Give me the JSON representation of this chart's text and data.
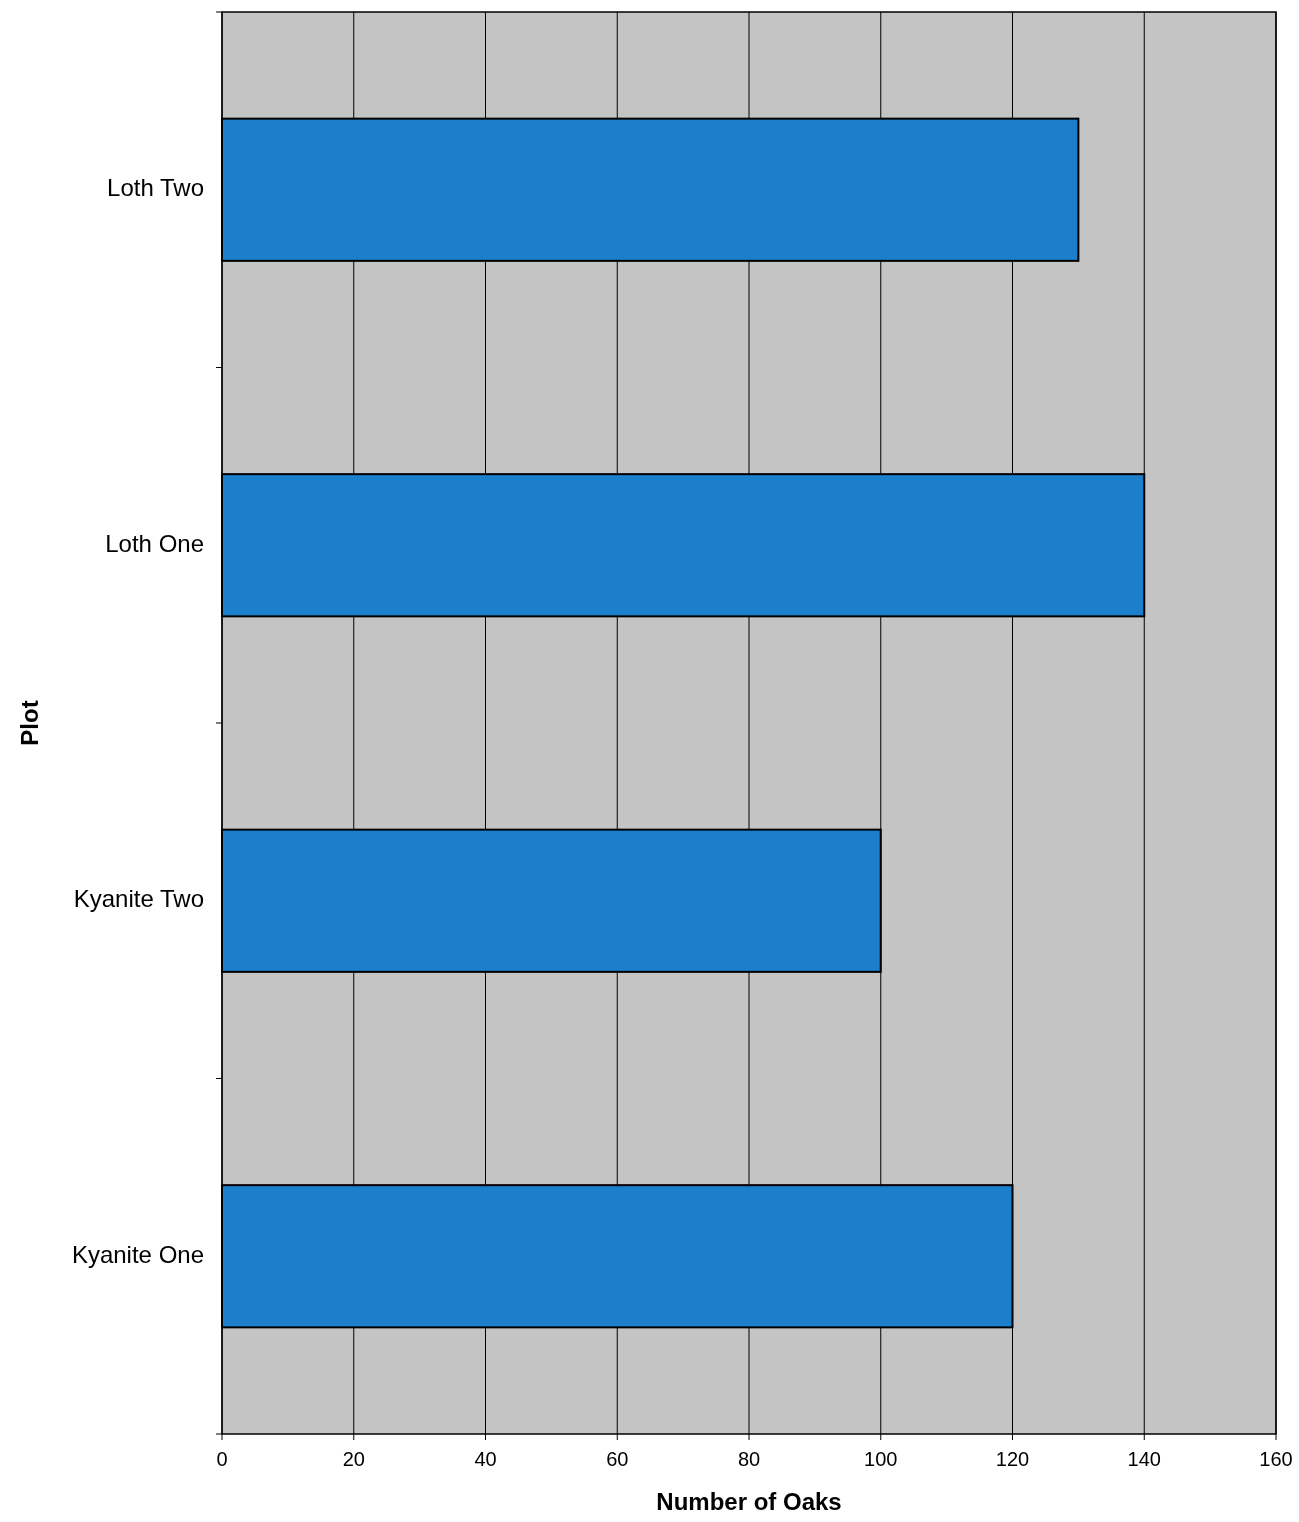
{
  "chart_data": {
    "type": "bar",
    "orientation": "horizontal",
    "xlabel": "Number of Oaks",
    "ylabel": "Plot",
    "categories": [
      "Loth Two",
      "Loth One",
      "Kyanite Two",
      "Kyanite One"
    ],
    "values": [
      130,
      140,
      100,
      120
    ],
    "color": "#1b7fcc",
    "xlim": [
      0,
      160
    ],
    "xticks": [
      0,
      20,
      40,
      60,
      80,
      100,
      120,
      140,
      160
    ],
    "grid": "x"
  }
}
